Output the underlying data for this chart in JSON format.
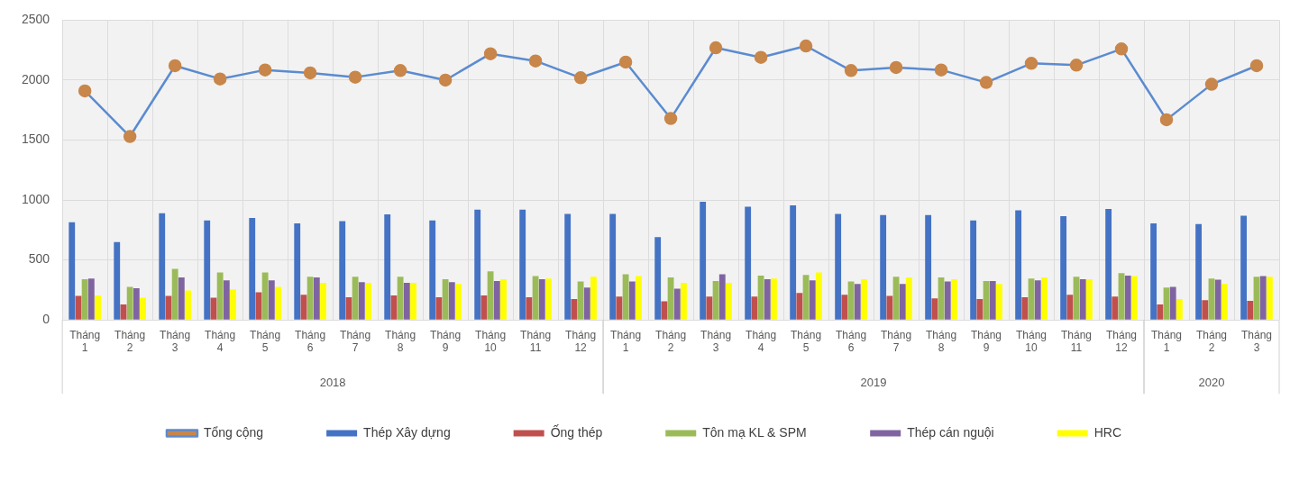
{
  "chart_data": {
    "type": "bar",
    "categories": [
      "Tháng 1",
      "Tháng 2",
      "Tháng 3",
      "Tháng 4",
      "Tháng 5",
      "Tháng 6",
      "Tháng 7",
      "Tháng 8",
      "Tháng 9",
      "Tháng 10",
      "Tháng 11",
      "Tháng 12",
      "Tháng 1",
      "Tháng 2",
      "Tháng 3",
      "Tháng 4",
      "Tháng 5",
      "Tháng 6",
      "Tháng 7",
      "Tháng 8",
      "Tháng 9",
      "Tháng 10",
      "Tháng 11",
      "Tháng 12",
      "Tháng 1",
      "Tháng 2",
      "Tháng 3"
    ],
    "series": [
      {
        "name": "Thép Xây dựng",
        "color": "#4472c4",
        "values": [
          815,
          650,
          890,
          830,
          850,
          805,
          825,
          880,
          830,
          920,
          920,
          885,
          885,
          690,
          985,
          945,
          955,
          885,
          875,
          875,
          830,
          915,
          865,
          925,
          805,
          800,
          870
        ]
      },
      {
        "name": "Ống thép",
        "color": "#c0504d",
        "values": [
          200,
          130,
          200,
          185,
          230,
          210,
          190,
          205,
          190,
          205,
          190,
          175,
          195,
          155,
          195,
          195,
          225,
          210,
          200,
          180,
          175,
          190,
          210,
          195,
          130,
          165,
          160
        ]
      },
      {
        "name": "Tôn mạ KL & SPM",
        "color": "#9bbb59",
        "values": [
          340,
          275,
          425,
          395,
          395,
          360,
          360,
          360,
          340,
          405,
          365,
          320,
          380,
          355,
          325,
          370,
          375,
          320,
          360,
          355,
          325,
          345,
          360,
          390,
          270,
          345,
          360
        ]
      },
      {
        "name": "Thép cán nguội",
        "color": "#8064a2",
        "values": [
          345,
          265,
          355,
          330,
          330,
          355,
          315,
          310,
          315,
          325,
          340,
          270,
          320,
          260,
          380,
          340,
          330,
          300,
          300,
          320,
          325,
          330,
          340,
          370,
          275,
          335,
          365
        ]
      },
      {
        "name": "HRC",
        "color": "#ffff00",
        "values": [
          205,
          185,
          245,
          255,
          275,
          310,
          310,
          310,
          300,
          340,
          345,
          360,
          365,
          310,
          310,
          345,
          395,
          340,
          355,
          340,
          300,
          355,
          340,
          365,
          175,
          300,
          360
        ]
      },
      {
        "name": "Tổng cộng",
        "type": "line",
        "color": "#5b8bd0",
        "values": [
          1910,
          1530,
          2120,
          2010,
          2085,
          2060,
          2025,
          2080,
          2000,
          2220,
          2160,
          2020,
          2150,
          1680,
          2270,
          2190,
          2285,
          2080,
          2105,
          2085,
          1980,
          2140,
          2125,
          2260,
          1670,
          1965,
          2120
        ]
      }
    ],
    "ylim": [
      0,
      2500
    ],
    "yticks": [
      0,
      500,
      1000,
      1500,
      2000,
      2500
    ],
    "grid": true,
    "legend": "bottom",
    "marker": "circle",
    "annotations": [
      "2018",
      "2019",
      "2020"
    ]
  }
}
